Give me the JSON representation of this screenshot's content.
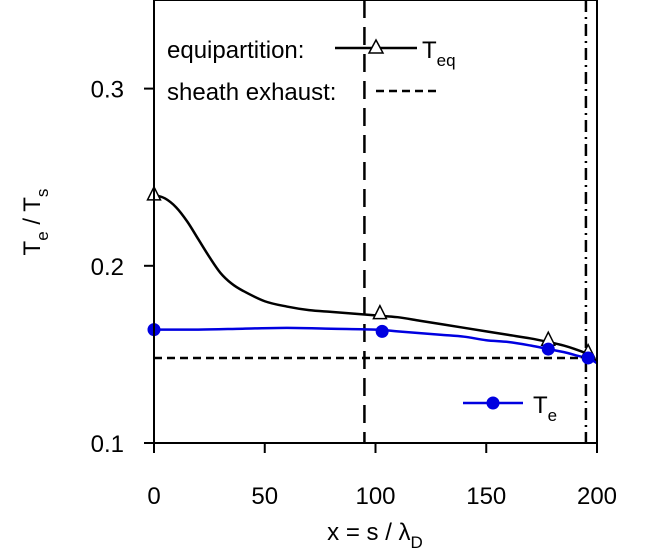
{
  "chart_data": {
    "type": "line",
    "xlabel": {
      "prefix": "x = s / λ",
      "sub": "D"
    },
    "ylabel": {
      "p1": "T",
      "s1": "e",
      "mid": " / T",
      "s2": "s"
    },
    "xlim": [
      0,
      200
    ],
    "ylim": [
      0.1,
      0.35
    ],
    "x_ticks": [
      0,
      50,
      100,
      150,
      200
    ],
    "x_tick_labels": [
      "0",
      "50",
      "100",
      "150",
      "200"
    ],
    "y_ticks": [
      0.1,
      0.2,
      0.3
    ],
    "y_tick_labels": [
      "0.1",
      "0.2",
      "0.3"
    ],
    "grid": false,
    "series": [
      {
        "name": "T_eq",
        "color": "#000000",
        "marker": "open-triangle",
        "curve": [
          [
            0,
            0.24
          ],
          [
            5,
            0.238
          ],
          [
            10,
            0.233
          ],
          [
            15,
            0.225
          ],
          [
            20,
            0.215
          ],
          [
            25,
            0.205
          ],
          [
            30,
            0.196
          ],
          [
            35,
            0.19
          ],
          [
            40,
            0.186
          ],
          [
            50,
            0.18
          ],
          [
            60,
            0.177
          ],
          [
            70,
            0.175
          ],
          [
            80,
            0.174
          ],
          [
            90,
            0.173
          ],
          [
            100,
            0.172
          ],
          [
            110,
            0.171
          ],
          [
            120,
            0.169
          ],
          [
            130,
            0.167
          ],
          [
            140,
            0.165
          ],
          [
            150,
            0.163
          ],
          [
            160,
            0.161
          ],
          [
            170,
            0.159
          ],
          [
            178,
            0.157
          ],
          [
            185,
            0.155
          ],
          [
            190,
            0.153
          ],
          [
            196,
            0.15
          ],
          [
            200,
            0.146
          ]
        ],
        "markers": [
          [
            0,
            0.24
          ],
          [
            102,
            0.173
          ],
          [
            178,
            0.158
          ],
          [
            196,
            0.151
          ]
        ]
      },
      {
        "name": "T_e",
        "color": "#0000e0",
        "marker": "filled-circle",
        "curve": [
          [
            0,
            0.164
          ],
          [
            20,
            0.164
          ],
          [
            40,
            0.1645
          ],
          [
            60,
            0.165
          ],
          [
            80,
            0.1645
          ],
          [
            100,
            0.164
          ],
          [
            110,
            0.163
          ],
          [
            120,
            0.162
          ],
          [
            130,
            0.161
          ],
          [
            140,
            0.16
          ],
          [
            150,
            0.158
          ],
          [
            160,
            0.157
          ],
          [
            170,
            0.155
          ],
          [
            178,
            0.153
          ],
          [
            186,
            0.151
          ],
          [
            192,
            0.149
          ],
          [
            196,
            0.148
          ],
          [
            200,
            0.145
          ]
        ],
        "markers": [
          [
            0,
            0.164
          ],
          [
            103,
            0.163
          ],
          [
            178,
            0.153
          ],
          [
            196,
            0.148
          ]
        ]
      }
    ],
    "reference_lines": [
      {
        "kind": "horizontal",
        "y": 0.148,
        "style": "short-dash",
        "color": "#000000"
      },
      {
        "kind": "vertical",
        "x": 95,
        "style": "long-dash",
        "color": "#000000"
      },
      {
        "kind": "vertical",
        "x": 195,
        "style": "dash-dot",
        "color": "#000000"
      }
    ],
    "legend": {
      "equipartition": {
        "label": "equipartition:",
        "symbol_main": "T",
        "symbol_sub": "eq"
      },
      "sheath": {
        "label": "sheath exhaust:"
      },
      "te": {
        "symbol_main": "T",
        "symbol_sub": "e"
      }
    }
  }
}
